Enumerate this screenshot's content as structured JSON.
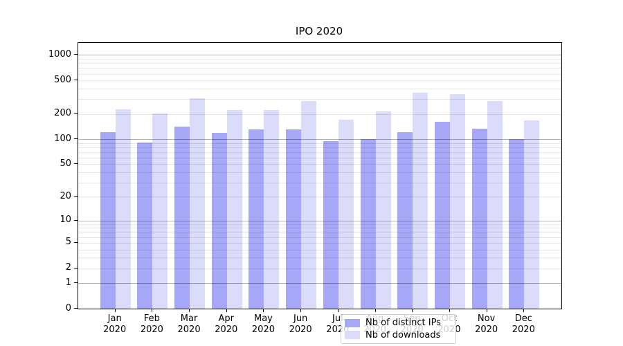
{
  "title": "IPO 2020",
  "chart_data": {
    "type": "bar",
    "title": "IPO 2020",
    "scale": "log1p (y position proportional to log10(1+value), 0 at baseline)",
    "categories": [
      "Jan",
      "Feb",
      "Mar",
      "Apr",
      "May",
      "Jun",
      "Jul",
      "Aug",
      "Sep",
      "Oct",
      "Nov",
      "Dec"
    ],
    "year_label": "2020",
    "series": [
      {
        "name": "Nb of distinct IPs",
        "color": "#a7a7f7",
        "values": [
          122,
          92,
          142,
          119,
          130,
          130,
          94,
          100,
          122,
          162,
          133,
          101
        ]
      },
      {
        "name": "Nb of downloads",
        "color": "#dbdbfa",
        "values": [
          226,
          204,
          309,
          223,
          223,
          287,
          172,
          215,
          360,
          345,
          287,
          168
        ]
      }
    ],
    "y_ticks": [
      0,
      1,
      2,
      5,
      10,
      20,
      50,
      100,
      200,
      500,
      1000
    ],
    "ylim": [
      0,
      1390
    ],
    "grid": "on, major decade lines darker, minor multiples lighter",
    "legend_position": "lower center inside plot"
  },
  "colors": {
    "background": "#ffffff",
    "spine": "#000000",
    "grid_major": "rgba(0,0,0,0.30)",
    "grid_minor": "rgba(0,0,0,0.10)",
    "tick_text": "#000000",
    "legend_bg": "rgba(255,255,255,0.8)",
    "legend_border": "#cccccc"
  }
}
